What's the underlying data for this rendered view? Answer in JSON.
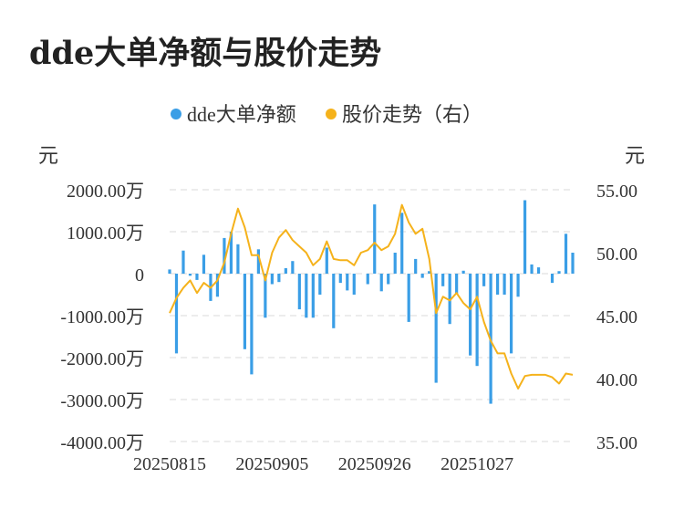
{
  "title": "dde大单净额与股价走势",
  "colors": {
    "bar": "#3a9ee6",
    "line": "#f5b21b",
    "grid": "#e6e6e6",
    "text": "#333333"
  },
  "chart_data": {
    "type": "bar+line",
    "title": "dde大单净额与股价走势",
    "legend": {
      "position": "top-center",
      "items": [
        {
          "label": "dde大单净额",
          "color": "#3a9ee6"
        },
        {
          "label": "股价走势（右）",
          "color": "#f5b21b"
        }
      ]
    },
    "left_unit": "元",
    "right_unit": "元",
    "left_axis": {
      "min": -4000,
      "max": 2000,
      "ticks": [
        {
          "value": 2000,
          "label": "2000.00万"
        },
        {
          "value": 1000,
          "label": "1000.00万"
        },
        {
          "value": 0,
          "label": "0"
        },
        {
          "value": -1000,
          "label": "-1000.00万"
        },
        {
          "value": -2000,
          "label": "-2000.00万"
        },
        {
          "value": -3000,
          "label": "-3000.00万"
        },
        {
          "value": -4000,
          "label": "-4000.00万"
        }
      ]
    },
    "right_axis": {
      "min": 35,
      "max": 55,
      "ticks": [
        {
          "value": 55,
          "label": "55.00"
        },
        {
          "value": 50,
          "label": "50.00"
        },
        {
          "value": 45,
          "label": "45.00"
        },
        {
          "value": 40,
          "label": "40.00"
        },
        {
          "value": 35,
          "label": "35.00"
        }
      ]
    },
    "x_ticks": [
      {
        "index": 0,
        "label": "20250815"
      },
      {
        "index": 15,
        "label": "20250905"
      },
      {
        "index": 30,
        "label": "20250926"
      },
      {
        "index": 45,
        "label": "20251027"
      }
    ],
    "grid": true,
    "series": [
      {
        "name": "dde大单净额",
        "type": "bar",
        "axis": "left",
        "values": [
          100,
          -1900,
          550,
          -50,
          -150,
          450,
          -650,
          -550,
          850,
          1000,
          700,
          -1800,
          -2400,
          580,
          -1050,
          -250,
          -200,
          130,
          300,
          -850,
          -1050,
          -1050,
          -500,
          620,
          -1300,
          -220,
          -400,
          -500,
          0,
          -250,
          1650,
          -420,
          -250,
          500,
          1450,
          -1150,
          350,
          -100,
          60,
          -2600,
          -300,
          -1200,
          -500,
          70,
          -1950,
          -2200,
          -300,
          -3100,
          -500,
          -500,
          -1900,
          -550,
          1750,
          220,
          150,
          0,
          -220,
          60,
          950,
          500
        ]
      },
      {
        "name": "股价走势（右）",
        "type": "line",
        "axis": "right",
        "values": [
          45.2,
          46.4,
          47.2,
          47.8,
          46.8,
          47.6,
          47.2,
          47.8,
          49.2,
          51.5,
          53.5,
          52.0,
          49.8,
          49.8,
          47.8,
          50.0,
          51.2,
          51.8,
          51.0,
          50.5,
          50.0,
          49.0,
          49.5,
          50.9,
          49.5,
          49.4,
          49.4,
          49.0,
          50.0,
          50.2,
          50.8,
          50.2,
          50.5,
          51.5,
          53.8,
          52.4,
          51.5,
          51.9,
          49.5,
          45.2,
          46.5,
          46.2,
          46.8,
          46.0,
          45.5,
          46.5,
          44.5,
          43.0,
          42.0,
          42.0,
          40.4,
          39.2,
          40.2,
          40.3,
          40.3,
          40.3,
          40.1,
          39.6,
          40.4,
          40.3
        ]
      }
    ]
  }
}
